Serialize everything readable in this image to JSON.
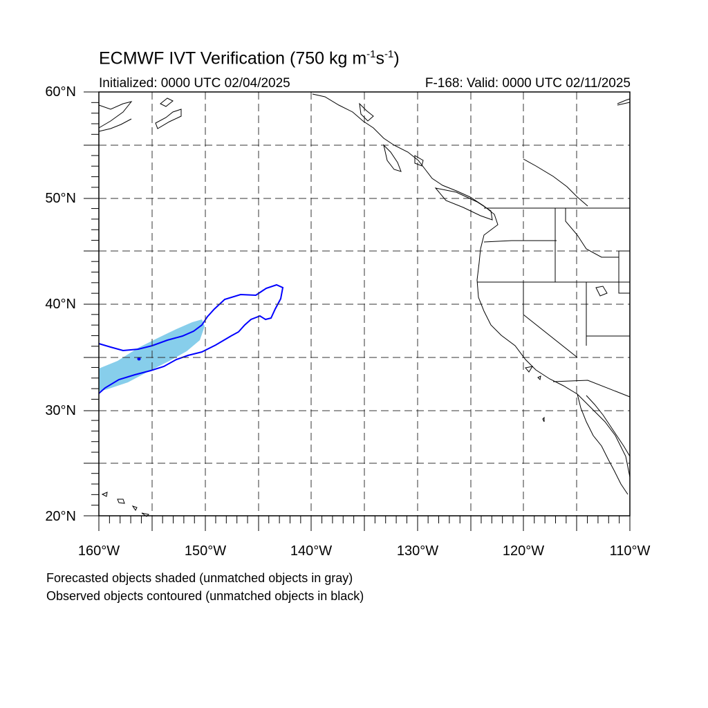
{
  "title": {
    "main": "ECMWF IVT Verification (750 kg m",
    "exp1": "-1",
    "mid": "s",
    "exp2": "-1",
    "end": ")"
  },
  "initialized": "Initialized: 0000 UTC 02/04/2025",
  "valid": "F-168: Valid: 0000 UTC 02/11/2025",
  "lat_labels": [
    "60°N",
    "50°N",
    "40°N",
    "30°N",
    "20°N"
  ],
  "lon_labels": [
    "160°W",
    "150°W",
    "140°W",
    "130°W",
    "120°W",
    "110°W"
  ],
  "notes": [
    "Forecasted objects shaded (unmatched objects in gray)",
    "Observed objects contoured (unmatched objects in black)"
  ],
  "colors": {
    "forecast_shading": "#87ceeb",
    "observed_contour": "#0000ff",
    "coastline": "#000000",
    "grid": "#000000"
  }
}
